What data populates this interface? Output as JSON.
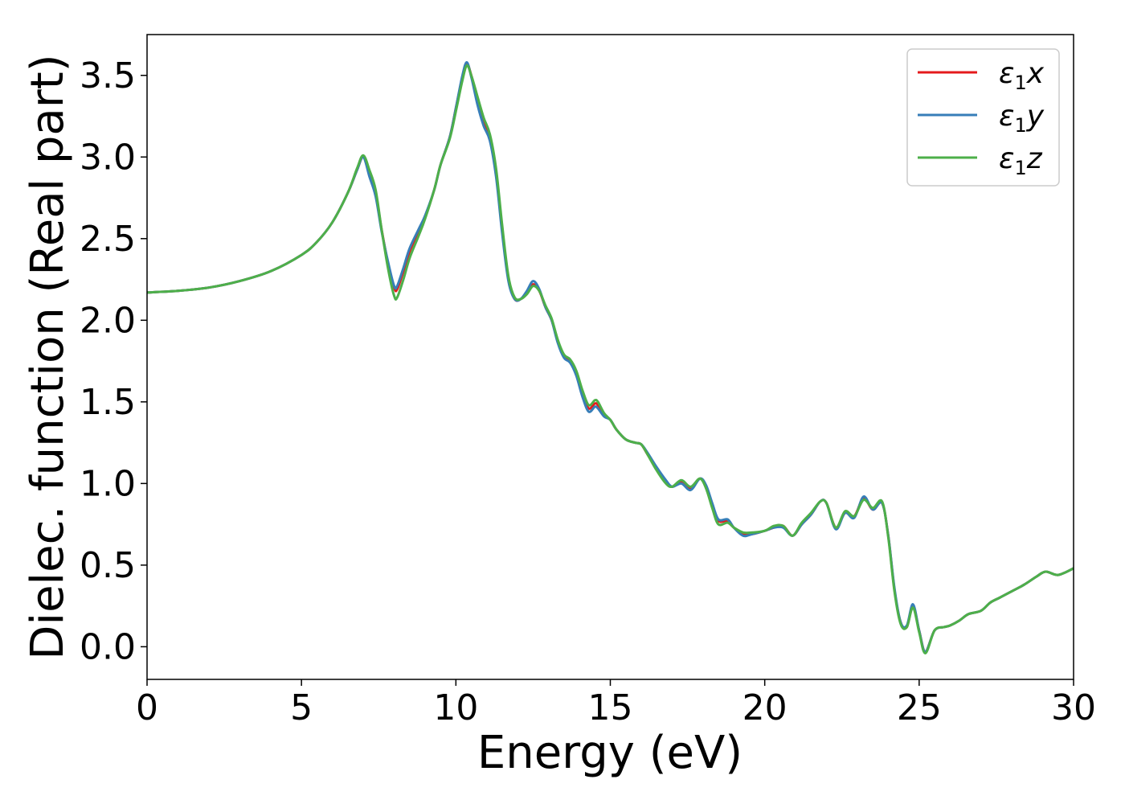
{
  "chart_data": {
    "type": "line",
    "title": "",
    "xlabel": "Energy (eV)",
    "ylabel": "Dielec. function (Real part)",
    "xlim": [
      0,
      30
    ],
    "ylim": [
      -0.2,
      3.75
    ],
    "xticks": [
      0,
      5,
      10,
      15,
      20,
      25,
      30
    ],
    "xtick_labels": [
      "0",
      "5",
      "10",
      "15",
      "20",
      "25",
      "30"
    ],
    "yticks": [
      0.0,
      0.5,
      1.0,
      1.5,
      2.0,
      2.5,
      3.0,
      3.5
    ],
    "ytick_labels": [
      "0.0",
      "0.5",
      "1.0",
      "1.5",
      "2.0",
      "2.5",
      "3.0",
      "3.5"
    ],
    "grid": false,
    "legend_position": "top-right",
    "series": [
      {
        "name": "ε₁x",
        "legend_main": "ε",
        "legend_sub": "1",
        "legend_suffix": "x",
        "color": "#e41a1c",
        "points": [
          [
            0,
            2.17
          ],
          [
            1,
            2.18
          ],
          [
            2,
            2.2
          ],
          [
            3,
            2.24
          ],
          [
            4,
            2.3
          ],
          [
            5,
            2.4
          ],
          [
            5.5,
            2.48
          ],
          [
            6,
            2.6
          ],
          [
            6.5,
            2.78
          ],
          [
            6.8,
            2.92
          ],
          [
            7.0,
            3.0
          ],
          [
            7.2,
            2.9
          ],
          [
            7.4,
            2.78
          ],
          [
            7.6,
            2.55
          ],
          [
            7.8,
            2.35
          ],
          [
            8.0,
            2.2
          ],
          [
            8.1,
            2.19
          ],
          [
            8.3,
            2.3
          ],
          [
            8.5,
            2.42
          ],
          [
            8.8,
            2.55
          ],
          [
            9.0,
            2.63
          ],
          [
            9.3,
            2.8
          ],
          [
            9.5,
            2.95
          ],
          [
            9.8,
            3.12
          ],
          [
            10.0,
            3.3
          ],
          [
            10.2,
            3.48
          ],
          [
            10.35,
            3.57
          ],
          [
            10.5,
            3.5
          ],
          [
            10.7,
            3.35
          ],
          [
            10.9,
            3.22
          ],
          [
            11.1,
            3.12
          ],
          [
            11.3,
            2.9
          ],
          [
            11.5,
            2.55
          ],
          [
            11.7,
            2.25
          ],
          [
            11.9,
            2.13
          ],
          [
            12.1,
            2.13
          ],
          [
            12.3,
            2.17
          ],
          [
            12.5,
            2.22
          ],
          [
            12.7,
            2.18
          ],
          [
            12.9,
            2.08
          ],
          [
            13.1,
            2.0
          ],
          [
            13.3,
            1.87
          ],
          [
            13.5,
            1.78
          ],
          [
            13.7,
            1.75
          ],
          [
            13.9,
            1.68
          ],
          [
            14.1,
            1.55
          ],
          [
            14.3,
            1.46
          ],
          [
            14.5,
            1.49
          ],
          [
            14.6,
            1.48
          ],
          [
            14.8,
            1.42
          ],
          [
            15.0,
            1.39
          ],
          [
            15.2,
            1.33
          ],
          [
            15.5,
            1.27
          ],
          [
            15.8,
            1.25
          ],
          [
            16.0,
            1.24
          ],
          [
            16.2,
            1.18
          ],
          [
            16.5,
            1.09
          ],
          [
            16.8,
            1.01
          ],
          [
            17.0,
            0.98
          ],
          [
            17.3,
            1.01
          ],
          [
            17.6,
            0.97
          ],
          [
            17.9,
            1.03
          ],
          [
            18.1,
            0.98
          ],
          [
            18.3,
            0.86
          ],
          [
            18.5,
            0.77
          ],
          [
            18.8,
            0.77
          ],
          [
            19.0,
            0.73
          ],
          [
            19.3,
            0.69
          ],
          [
            19.6,
            0.69
          ],
          [
            20.0,
            0.71
          ],
          [
            20.3,
            0.73
          ],
          [
            20.6,
            0.74
          ],
          [
            20.9,
            0.68
          ],
          [
            21.2,
            0.75
          ],
          [
            21.5,
            0.81
          ],
          [
            21.8,
            0.89
          ],
          [
            22.0,
            0.88
          ],
          [
            22.3,
            0.73
          ],
          [
            22.6,
            0.82
          ],
          [
            22.9,
            0.8
          ],
          [
            23.2,
            0.91
          ],
          [
            23.5,
            0.84
          ],
          [
            23.8,
            0.88
          ],
          [
            24.0,
            0.68
          ],
          [
            24.2,
            0.35
          ],
          [
            24.4,
            0.15
          ],
          [
            24.6,
            0.12
          ],
          [
            24.8,
            0.25
          ],
          [
            25.0,
            0.1
          ],
          [
            25.2,
            -0.03
          ],
          [
            25.5,
            0.1
          ],
          [
            25.8,
            0.12
          ],
          [
            26.0,
            0.13
          ],
          [
            26.3,
            0.16
          ],
          [
            26.6,
            0.2
          ],
          [
            27.0,
            0.22
          ],
          [
            27.3,
            0.27
          ],
          [
            27.6,
            0.3
          ],
          [
            28.0,
            0.34
          ],
          [
            28.4,
            0.38
          ],
          [
            28.8,
            0.43
          ],
          [
            29.1,
            0.46
          ],
          [
            29.5,
            0.44
          ],
          [
            30.0,
            0.48
          ]
        ]
      },
      {
        "name": "ε₁y",
        "legend_main": "ε",
        "legend_sub": "1",
        "legend_suffix": "y",
        "color": "#377eb8",
        "points": [
          [
            0,
            2.17
          ],
          [
            1,
            2.18
          ],
          [
            2,
            2.2
          ],
          [
            3,
            2.24
          ],
          [
            4,
            2.3
          ],
          [
            5,
            2.4
          ],
          [
            5.5,
            2.48
          ],
          [
            6,
            2.6
          ],
          [
            6.5,
            2.78
          ],
          [
            6.8,
            2.92
          ],
          [
            7.0,
            3.0
          ],
          [
            7.2,
            2.88
          ],
          [
            7.4,
            2.76
          ],
          [
            7.6,
            2.54
          ],
          [
            7.8,
            2.36
          ],
          [
            8.0,
            2.21
          ],
          [
            8.1,
            2.21
          ],
          [
            8.3,
            2.32
          ],
          [
            8.5,
            2.44
          ],
          [
            8.8,
            2.56
          ],
          [
            9.0,
            2.64
          ],
          [
            9.3,
            2.8
          ],
          [
            9.5,
            2.95
          ],
          [
            9.8,
            3.12
          ],
          [
            10.0,
            3.3
          ],
          [
            10.2,
            3.49
          ],
          [
            10.35,
            3.58
          ],
          [
            10.5,
            3.49
          ],
          [
            10.7,
            3.32
          ],
          [
            10.9,
            3.19
          ],
          [
            11.1,
            3.1
          ],
          [
            11.3,
            2.88
          ],
          [
            11.5,
            2.53
          ],
          [
            11.7,
            2.24
          ],
          [
            11.9,
            2.13
          ],
          [
            12.1,
            2.13
          ],
          [
            12.3,
            2.18
          ],
          [
            12.5,
            2.24
          ],
          [
            12.7,
            2.19
          ],
          [
            12.9,
            2.08
          ],
          [
            13.1,
            2.0
          ],
          [
            13.3,
            1.86
          ],
          [
            13.5,
            1.77
          ],
          [
            13.7,
            1.74
          ],
          [
            13.9,
            1.66
          ],
          [
            14.1,
            1.53
          ],
          [
            14.3,
            1.44
          ],
          [
            14.5,
            1.47
          ],
          [
            14.6,
            1.46
          ],
          [
            14.8,
            1.41
          ],
          [
            15.0,
            1.39
          ],
          [
            15.2,
            1.33
          ],
          [
            15.5,
            1.27
          ],
          [
            15.8,
            1.25
          ],
          [
            16.0,
            1.24
          ],
          [
            16.2,
            1.19
          ],
          [
            16.5,
            1.1
          ],
          [
            16.8,
            1.02
          ],
          [
            17.0,
            0.98
          ],
          [
            17.3,
            1.0
          ],
          [
            17.6,
            0.96
          ],
          [
            17.9,
            1.03
          ],
          [
            18.1,
            0.99
          ],
          [
            18.3,
            0.88
          ],
          [
            18.5,
            0.78
          ],
          [
            18.8,
            0.78
          ],
          [
            19.0,
            0.73
          ],
          [
            19.3,
            0.68
          ],
          [
            19.6,
            0.69
          ],
          [
            20.0,
            0.71
          ],
          [
            20.3,
            0.73
          ],
          [
            20.6,
            0.73
          ],
          [
            20.9,
            0.68
          ],
          [
            21.2,
            0.75
          ],
          [
            21.5,
            0.81
          ],
          [
            21.8,
            0.89
          ],
          [
            22.0,
            0.88
          ],
          [
            22.3,
            0.72
          ],
          [
            22.6,
            0.82
          ],
          [
            22.9,
            0.79
          ],
          [
            23.2,
            0.92
          ],
          [
            23.5,
            0.84
          ],
          [
            23.8,
            0.88
          ],
          [
            24.0,
            0.68
          ],
          [
            24.2,
            0.36
          ],
          [
            24.4,
            0.15
          ],
          [
            24.6,
            0.13
          ],
          [
            24.8,
            0.26
          ],
          [
            25.0,
            0.1
          ],
          [
            25.2,
            -0.03
          ],
          [
            25.5,
            0.1
          ],
          [
            25.8,
            0.12
          ],
          [
            26.0,
            0.13
          ],
          [
            26.3,
            0.16
          ],
          [
            26.6,
            0.2
          ],
          [
            27.0,
            0.22
          ],
          [
            27.3,
            0.27
          ],
          [
            27.6,
            0.3
          ],
          [
            28.0,
            0.34
          ],
          [
            28.4,
            0.38
          ],
          [
            28.8,
            0.43
          ],
          [
            29.1,
            0.46
          ],
          [
            29.5,
            0.44
          ],
          [
            30.0,
            0.48
          ]
        ]
      },
      {
        "name": "ε₁z",
        "legend_main": "ε",
        "legend_sub": "1",
        "legend_suffix": "z",
        "color": "#4daf4a",
        "points": [
          [
            0,
            2.17
          ],
          [
            1,
            2.18
          ],
          [
            2,
            2.2
          ],
          [
            3,
            2.24
          ],
          [
            4,
            2.3
          ],
          [
            5,
            2.4
          ],
          [
            5.5,
            2.48
          ],
          [
            6,
            2.6
          ],
          [
            6.5,
            2.78
          ],
          [
            6.8,
            2.93
          ],
          [
            7.0,
            3.01
          ],
          [
            7.2,
            2.92
          ],
          [
            7.4,
            2.8
          ],
          [
            7.6,
            2.55
          ],
          [
            7.8,
            2.32
          ],
          [
            8.0,
            2.15
          ],
          [
            8.1,
            2.14
          ],
          [
            8.3,
            2.25
          ],
          [
            8.5,
            2.38
          ],
          [
            8.8,
            2.52
          ],
          [
            9.0,
            2.62
          ],
          [
            9.3,
            2.8
          ],
          [
            9.5,
            2.95
          ],
          [
            9.8,
            3.11
          ],
          [
            10.0,
            3.28
          ],
          [
            10.2,
            3.46
          ],
          [
            10.35,
            3.56
          ],
          [
            10.5,
            3.5
          ],
          [
            10.7,
            3.37
          ],
          [
            10.9,
            3.24
          ],
          [
            11.1,
            3.14
          ],
          [
            11.3,
            2.93
          ],
          [
            11.5,
            2.58
          ],
          [
            11.7,
            2.27
          ],
          [
            11.9,
            2.14
          ],
          [
            12.1,
            2.13
          ],
          [
            12.3,
            2.16
          ],
          [
            12.5,
            2.21
          ],
          [
            12.7,
            2.18
          ],
          [
            12.9,
            2.09
          ],
          [
            13.1,
            2.01
          ],
          [
            13.3,
            1.88
          ],
          [
            13.5,
            1.79
          ],
          [
            13.7,
            1.76
          ],
          [
            13.9,
            1.69
          ],
          [
            14.1,
            1.57
          ],
          [
            14.3,
            1.48
          ],
          [
            14.5,
            1.51
          ],
          [
            14.6,
            1.5
          ],
          [
            14.8,
            1.43
          ],
          [
            15.0,
            1.39
          ],
          [
            15.2,
            1.33
          ],
          [
            15.5,
            1.27
          ],
          [
            15.8,
            1.25
          ],
          [
            16.0,
            1.24
          ],
          [
            16.2,
            1.18
          ],
          [
            16.5,
            1.08
          ],
          [
            16.8,
            1.0
          ],
          [
            17.0,
            0.98
          ],
          [
            17.3,
            1.02
          ],
          [
            17.6,
            0.98
          ],
          [
            17.9,
            1.03
          ],
          [
            18.1,
            0.97
          ],
          [
            18.3,
            0.85
          ],
          [
            18.5,
            0.75
          ],
          [
            18.8,
            0.76
          ],
          [
            19.0,
            0.73
          ],
          [
            19.3,
            0.7
          ],
          [
            19.6,
            0.7
          ],
          [
            20.0,
            0.71
          ],
          [
            20.3,
            0.74
          ],
          [
            20.6,
            0.74
          ],
          [
            20.9,
            0.68
          ],
          [
            21.2,
            0.76
          ],
          [
            21.5,
            0.82
          ],
          [
            21.8,
            0.89
          ],
          [
            22.0,
            0.88
          ],
          [
            22.3,
            0.73
          ],
          [
            22.6,
            0.83
          ],
          [
            22.9,
            0.8
          ],
          [
            23.2,
            0.9
          ],
          [
            23.5,
            0.85
          ],
          [
            23.8,
            0.89
          ],
          [
            24.0,
            0.67
          ],
          [
            24.2,
            0.34
          ],
          [
            24.4,
            0.14
          ],
          [
            24.6,
            0.12
          ],
          [
            24.8,
            0.24
          ],
          [
            25.0,
            0.09
          ],
          [
            25.2,
            -0.04
          ],
          [
            25.5,
            0.1
          ],
          [
            25.8,
            0.12
          ],
          [
            26.0,
            0.13
          ],
          [
            26.3,
            0.16
          ],
          [
            26.6,
            0.2
          ],
          [
            27.0,
            0.22
          ],
          [
            27.3,
            0.27
          ],
          [
            27.6,
            0.3
          ],
          [
            28.0,
            0.34
          ],
          [
            28.4,
            0.38
          ],
          [
            28.8,
            0.43
          ],
          [
            29.1,
            0.46
          ],
          [
            29.5,
            0.44
          ],
          [
            30.0,
            0.48
          ]
        ]
      }
    ]
  }
}
